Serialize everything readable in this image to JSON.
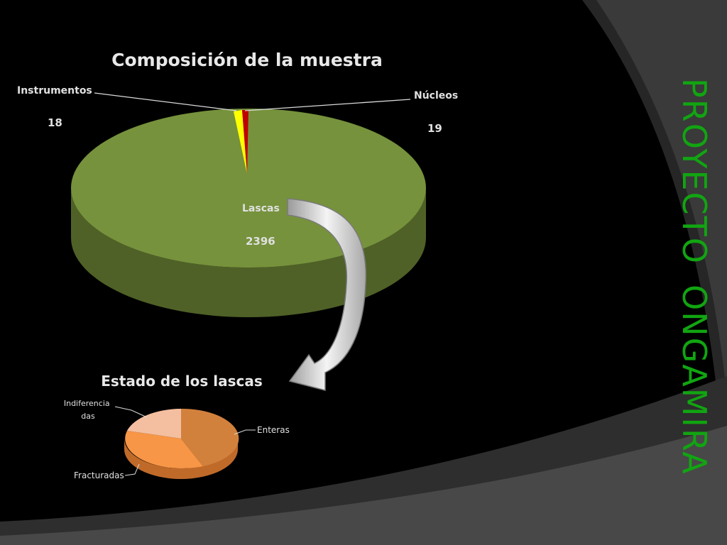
{
  "brand": {
    "title_word1": "PROYECTO",
    "title_word2": "ONGAMIRA",
    "color": "#11a511"
  },
  "chart_data": [
    {
      "type": "pie",
      "title": "Composición de la muestra",
      "categories": [
        "Lascas",
        "Instrumentos",
        "Núcleos"
      ],
      "values": [
        2396,
        18,
        19
      ],
      "colors": [
        "#76923c",
        "#ffff00",
        "#c00000"
      ],
      "data_labels": {
        "Lascas": "2396",
        "Instrumentos": "18",
        "Núcleos": "19"
      }
    },
    {
      "type": "pie",
      "title": "Estado de los lascas",
      "categories": [
        "Enteras",
        "Fracturadas",
        "Indiferencia das"
      ],
      "values": [
        40,
        40,
        20
      ],
      "colors": [
        "#d2813d",
        "#f79646",
        "#f4bfa0"
      ]
    }
  ]
}
